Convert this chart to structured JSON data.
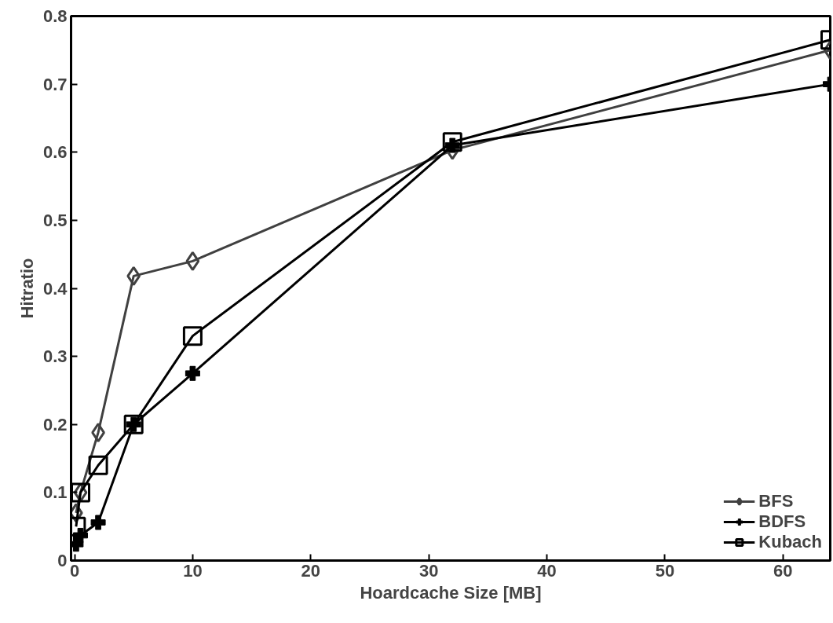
{
  "chart_data": {
    "type": "line",
    "xlabel": "Hoardcache Size [MB]",
    "ylabel": "Hitratio",
    "xlim": [
      -0.3,
      64
    ],
    "ylim": [
      0,
      0.8
    ],
    "xticks": [
      0,
      10,
      20,
      30,
      40,
      50,
      60
    ],
    "yticks": [
      0,
      0.1,
      0.2,
      0.3,
      0.4,
      0.5,
      0.6,
      0.7,
      0.8
    ],
    "x": [
      0.125,
      0.5,
      2,
      5,
      10,
      32,
      64
    ],
    "grid": false,
    "legend": "bottom right",
    "series": [
      {
        "name": "BFS",
        "color": "#404040",
        "marker": "diamond",
        "values": [
          0.07,
          0.1,
          0.188,
          0.418,
          0.44,
          0.603,
          0.75
        ]
      },
      {
        "name": "BDFS",
        "color": "#000000",
        "marker": "cross",
        "values": [
          0.024,
          0.037,
          0.056,
          0.2,
          0.275,
          0.61,
          0.7
        ]
      },
      {
        "name": "Kubach",
        "color": "#000000",
        "marker": "square",
        "values": [
          0.05,
          0.1,
          0.14,
          0.2,
          0.33,
          0.615,
          0.765
        ]
      }
    ]
  }
}
